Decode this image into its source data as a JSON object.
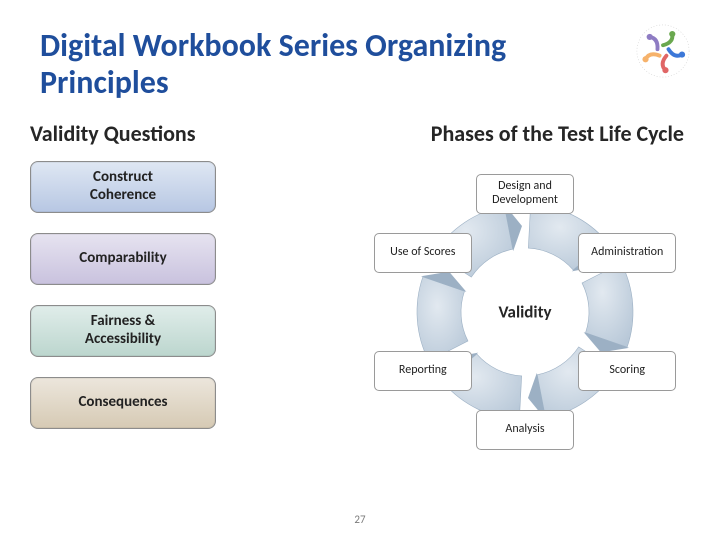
{
  "slide": {
    "title": "Digital Workbook Series Organizing Principles",
    "page_number": "27",
    "title_color": "#1f4e9c",
    "background_color": "#ffffff"
  },
  "left": {
    "heading": "Validity Questions",
    "boxes": [
      {
        "label": "Construct\nCoherence",
        "fill_top": "#dfe7f3",
        "fill_bottom": "#b7c7e3"
      },
      {
        "label": "Comparability",
        "fill_top": "#e6e3f0",
        "fill_bottom": "#c9c2de"
      },
      {
        "label": "Fairness &\nAccessibility",
        "fill_top": "#e0edea",
        "fill_bottom": "#bcd6ce"
      },
      {
        "label": "Consequences",
        "fill_top": "#ece6dc",
        "fill_bottom": "#d6cab4"
      }
    ]
  },
  "right": {
    "heading": "Phases of the Test Life Cycle",
    "center_label": "Validity",
    "cycle": {
      "type": "circular-process",
      "ring_color": "#b8c8d8",
      "ring_highlight": "#e2e9f0",
      "arrow_color": "#9cb0c4",
      "phases": [
        {
          "label": "Design and\nDevelopment",
          "angle_deg": -90
        },
        {
          "label": "Administration",
          "angle_deg": -30
        },
        {
          "label": "Scoring",
          "angle_deg": 30
        },
        {
          "label": "Analysis",
          "angle_deg": 90
        },
        {
          "label": "Reporting",
          "angle_deg": 150
        },
        {
          "label": "Use of Scores",
          "angle_deg": 210
        }
      ]
    }
  },
  "logo": {
    "ring_colors": [
      "#6aa84f",
      "#3c78d8",
      "#e06666",
      "#f6b26b",
      "#8e7cc3"
    ]
  }
}
